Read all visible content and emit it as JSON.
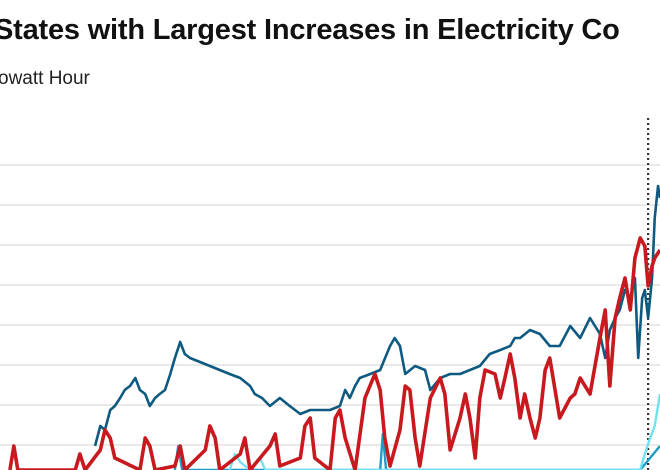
{
  "chart_data": {
    "type": "line",
    "title": "States with Largest Increases in Electricity Co",
    "subtitle": "owatt Hour",
    "xlabel": "",
    "ylabel": "",
    "xlim": [
      0,
      100
    ],
    "ylim": [
      0,
      8.6
    ],
    "grid": true,
    "marker_line": {
      "x": 98.2,
      "style": "dotted",
      "color": "#333333"
    },
    "series": [
      {
        "color": "#0f5a80",
        "points": [
          [
            14.4,
            0.6
          ],
          [
            15.2,
            1.1
          ],
          [
            15.9,
            1.0
          ],
          [
            16.7,
            1.5
          ],
          [
            17.4,
            1.6
          ],
          [
            18.2,
            1.8
          ],
          [
            18.9,
            2.0
          ],
          [
            19.7,
            2.1
          ],
          [
            20.5,
            2.3
          ],
          [
            21.2,
            2.0
          ],
          [
            22,
            1.9
          ],
          [
            22.7,
            1.6
          ],
          [
            23.5,
            1.8
          ],
          [
            24.2,
            1.9
          ],
          [
            25,
            2.0
          ],
          [
            25.8,
            2.4
          ],
          [
            26.5,
            2.8
          ],
          [
            27.3,
            3.2
          ],
          [
            28,
            2.9
          ],
          [
            28.8,
            2.8
          ],
          [
            30.3,
            2.7
          ],
          [
            31.8,
            2.6
          ],
          [
            33.3,
            2.5
          ],
          [
            34.8,
            2.4
          ],
          [
            36.4,
            2.3
          ],
          [
            37.9,
            2.1
          ],
          [
            38.6,
            1.9
          ],
          [
            39.7,
            1.8
          ],
          [
            40.9,
            1.6
          ],
          [
            42.4,
            1.8
          ],
          [
            43.9,
            1.6
          ],
          [
            45.5,
            1.4
          ],
          [
            47,
            1.5
          ],
          [
            48.5,
            1.5
          ],
          [
            50,
            1.5
          ],
          [
            51.5,
            1.6
          ],
          [
            52.3,
            2.0
          ],
          [
            53,
            1.8
          ],
          [
            53.8,
            2.1
          ],
          [
            54.5,
            2.3
          ],
          [
            56.1,
            2.4
          ],
          [
            57.6,
            2.5
          ],
          [
            59.1,
            3.1
          ],
          [
            59.8,
            3.3
          ],
          [
            60.6,
            3.1
          ],
          [
            61.4,
            2.4
          ],
          [
            62.9,
            2.6
          ],
          [
            64.4,
            2.5
          ],
          [
            65.2,
            2.0
          ],
          [
            66.7,
            2.3
          ],
          [
            68.2,
            2.4
          ],
          [
            69.7,
            2.4
          ],
          [
            71.2,
            2.5
          ],
          [
            72.7,
            2.6
          ],
          [
            74.2,
            2.9
          ],
          [
            75.8,
            3.0
          ],
          [
            77.3,
            3.1
          ],
          [
            78,
            3.3
          ],
          [
            78.8,
            3.3
          ],
          [
            80.3,
            3.5
          ],
          [
            81.8,
            3.4
          ],
          [
            83.3,
            3.1
          ],
          [
            84.8,
            3.1
          ],
          [
            86.4,
            3.6
          ],
          [
            87.9,
            3.3
          ],
          [
            89.4,
            3.8
          ],
          [
            90.9,
            3.4
          ],
          [
            91.7,
            2.8
          ],
          [
            92.4,
            3.5
          ],
          [
            93.2,
            3.8
          ],
          [
            93.9,
            4.0
          ],
          [
            94.7,
            4.5
          ],
          [
            95.5,
            4.3
          ],
          [
            96.2,
            4.8
          ],
          [
            96.7,
            2.8
          ],
          [
            97.3,
            4.3
          ],
          [
            97.7,
            4.5
          ],
          [
            98.2,
            3.8
          ],
          [
            98.8,
            4.8
          ],
          [
            99.2,
            6.3
          ],
          [
            99.7,
            7.1
          ],
          [
            100,
            6.8
          ]
        ]
      },
      {
        "color": "#c8191e",
        "points": [
          [
            1.5,
            0
          ],
          [
            2.1,
            0.6
          ],
          [
            2.7,
            0
          ],
          [
            11.4,
            0
          ],
          [
            12.1,
            0.4
          ],
          [
            12.9,
            0
          ],
          [
            15.2,
            0.5
          ],
          [
            15.9,
            1.0
          ],
          [
            16.7,
            0.8
          ],
          [
            17.4,
            0.3
          ],
          [
            21.2,
            0
          ],
          [
            22,
            0.8
          ],
          [
            22.7,
            0.6
          ],
          [
            23.5,
            0
          ],
          [
            26.5,
            0.1
          ],
          [
            27.3,
            0.6
          ],
          [
            28,
            0
          ],
          [
            31.1,
            0.5
          ],
          [
            31.8,
            1.1
          ],
          [
            32.6,
            0.8
          ],
          [
            33.3,
            0
          ],
          [
            36.4,
            0.4
          ],
          [
            37.1,
            0.8
          ],
          [
            37.9,
            0
          ],
          [
            40.9,
            0.6
          ],
          [
            41.7,
            0.9
          ],
          [
            42.4,
            0.1
          ],
          [
            45.5,
            0.3
          ],
          [
            46.2,
            1.1
          ],
          [
            47,
            1.3
          ],
          [
            47.7,
            0.3
          ],
          [
            50,
            0
          ],
          [
            50.8,
            1.3
          ],
          [
            51.5,
            1.5
          ],
          [
            52.3,
            0.8
          ],
          [
            53.8,
            0
          ],
          [
            55.3,
            1.8
          ],
          [
            56.8,
            2.4
          ],
          [
            57.6,
            2.0
          ],
          [
            58.3,
            0.8
          ],
          [
            59.1,
            0.1
          ],
          [
            60.6,
            1.0
          ],
          [
            61.4,
            2.1
          ],
          [
            62.1,
            2.0
          ],
          [
            62.9,
            0.8
          ],
          [
            63.6,
            0.1
          ],
          [
            65.2,
            1.8
          ],
          [
            66.7,
            2.3
          ],
          [
            67.4,
            1.9
          ],
          [
            68.2,
            0.5
          ],
          [
            69.7,
            1.3
          ],
          [
            70.5,
            1.9
          ],
          [
            71.2,
            1.3
          ],
          [
            72,
            0.3
          ],
          [
            72.7,
            1.8
          ],
          [
            73.5,
            2.5
          ],
          [
            75,
            2.4
          ],
          [
            75.8,
            1.8
          ],
          [
            76.5,
            2.3
          ],
          [
            77.3,
            2.9
          ],
          [
            78,
            2.3
          ],
          [
            78.8,
            1.3
          ],
          [
            79.5,
            1.9
          ],
          [
            80.3,
            1.3
          ],
          [
            81.1,
            0.8
          ],
          [
            81.8,
            1.3
          ],
          [
            82.6,
            2.5
          ],
          [
            83.3,
            2.8
          ],
          [
            84.1,
            2.0
          ],
          [
            84.8,
            1.3
          ],
          [
            86.4,
            1.8
          ],
          [
            87.1,
            1.9
          ],
          [
            87.9,
            2.3
          ],
          [
            89.4,
            1.9
          ],
          [
            90.9,
            3.3
          ],
          [
            91.7,
            4.0
          ],
          [
            92.4,
            2.1
          ],
          [
            93.2,
            3.8
          ],
          [
            93.9,
            4.3
          ],
          [
            94.7,
            4.8
          ],
          [
            95.5,
            4.0
          ],
          [
            96.2,
            5.3
          ],
          [
            97,
            5.8
          ],
          [
            97.7,
            5.6
          ],
          [
            98.2,
            4.6
          ],
          [
            98.8,
            5.1
          ],
          [
            99.2,
            5.3
          ],
          [
            100,
            5.5
          ]
        ]
      },
      {
        "color": "#1e9cc8",
        "points": [
          [
            26.5,
            0
          ],
          [
            27,
            0.6
          ],
          [
            27.6,
            0
          ],
          [
            57.6,
            0
          ],
          [
            58,
            0.9
          ],
          [
            58.5,
            0
          ],
          [
            97,
            0
          ],
          [
            98.5,
            0.3
          ],
          [
            100,
            0.6
          ]
        ]
      },
      {
        "color": "#72e2f2",
        "points": [
          [
            34.8,
            0
          ],
          [
            35.6,
            0.4
          ],
          [
            36.4,
            0.2
          ],
          [
            37.9,
            0
          ],
          [
            39.4,
            0.3
          ],
          [
            40.2,
            0
          ],
          [
            97,
            0
          ],
          [
            97.7,
            0.4
          ],
          [
            98.5,
            0.8
          ],
          [
            99.2,
            1.1
          ],
          [
            100,
            1.9
          ]
        ]
      }
    ]
  }
}
